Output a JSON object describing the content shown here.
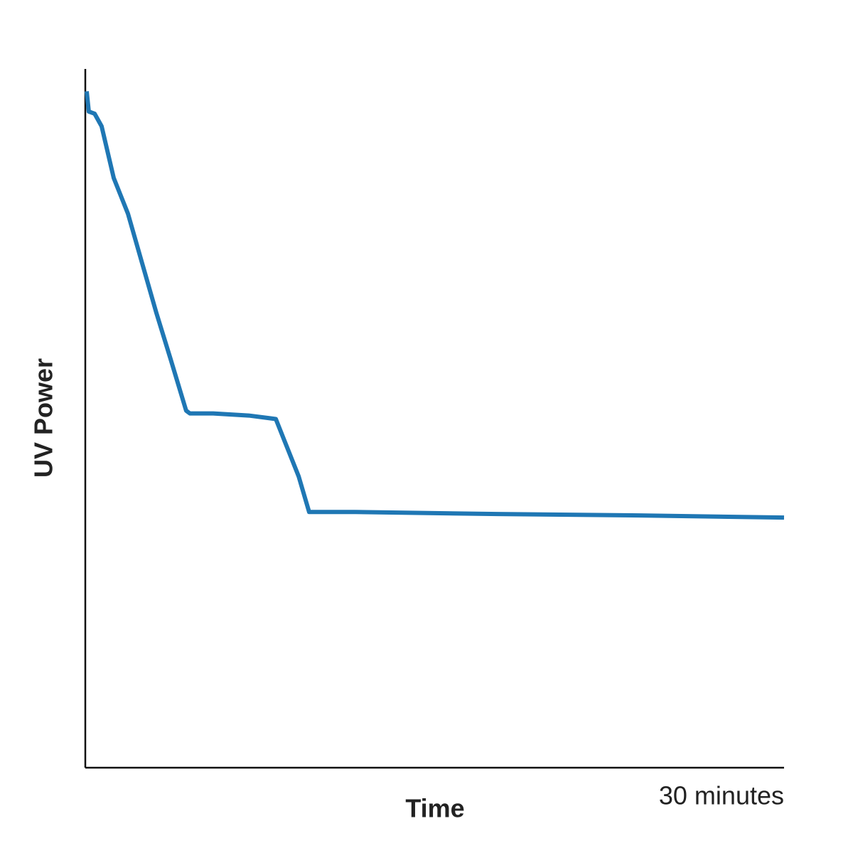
{
  "chart_data": {
    "type": "line",
    "x_label": "Time",
    "y_label": "UV Power",
    "xlim": [
      0,
      30
    ],
    "ylim": [
      0,
      100
    ],
    "xticks": [
      {
        "value": 30,
        "label": "30 minutes"
      }
    ],
    "x": [
      0.06,
      0.15,
      0.4,
      0.7,
      1.22,
      1.83,
      2.44,
      3.05,
      3.66,
      4.33,
      4.49,
      5.49,
      7.02,
      8.18,
      8.55,
      9.16,
      9.61,
      11.6,
      17.7,
      23.8,
      30
    ],
    "series": [
      {
        "color": "#1f77b4",
        "values": [
          96.8,
          93.9,
          93.6,
          91.8,
          84.4,
          79.3,
          72.2,
          65.1,
          58.5,
          51.1,
          50.7,
          50.7,
          50.4,
          49.9,
          46.8,
          41.7,
          36.6,
          36.6,
          36.3,
          36.1,
          35.8
        ]
      }
    ],
    "grid": false
  }
}
